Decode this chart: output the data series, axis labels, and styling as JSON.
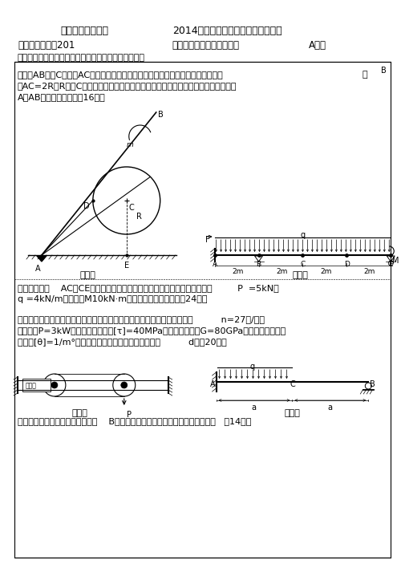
{
  "title_university": "桂林电子科技大学",
  "title_exam": "2014年硕士研究生入学考试复试试卷",
  "exam_code_label": "考试科目代码：201",
  "exam_name_label": "考试科目名称：工程力学（",
  "exam_version": "A卷）",
  "notice": "请注意：答案必须写在答题纸上（写在试卷上无效）。",
  "q1_text1": "一、杆AB、轮C和绳子AC组成的物体系统如图所示。作用在杆上的力偶，其力矩为",
  "q1_text2": "设AC=2R，R为轮C的半径，各物体重量均忽略不计，各接触处均为光滑的，试求铰链",
  "q1_text3": "A对AB杆的约束反力。（16分）",
  "fig1_label": "题一图",
  "fig2_label": "题二图",
  "q2_text1": "二、组合梁由    AC和CE用铰链联接而成，结构的尺寸和载荷如图所示，已知         P  =5kN，",
  "q2_text2": "q =4kN/m，力偶矩M10kN·m，试求梁的支座反力。（24分）",
  "q3_text1": "三、某桥式起重机，电动机通过变速箱带动传动轴如图示。已知传动轴转速          n=27转/分，",
  "q3_text2": "传递功率P=3kW，轴的许用剪应力[τ]=40MPa，钢的弹性模量G=80GPa，轴单位长度的许",
  "q3_text3": "可扭角[θ]=1/m°，试按强度条件和刚度条件选择轴径          d。（20分）",
  "fig3_label": "题三图",
  "fig4_label": "题四图",
  "q4_text1": "四、悬臂梁受载荷如图所示，试求    B处的支反力，并画出梁的剪力图和弯矩图。   （14分）",
  "bg_color": "#ffffff",
  "text_color": "#000000"
}
